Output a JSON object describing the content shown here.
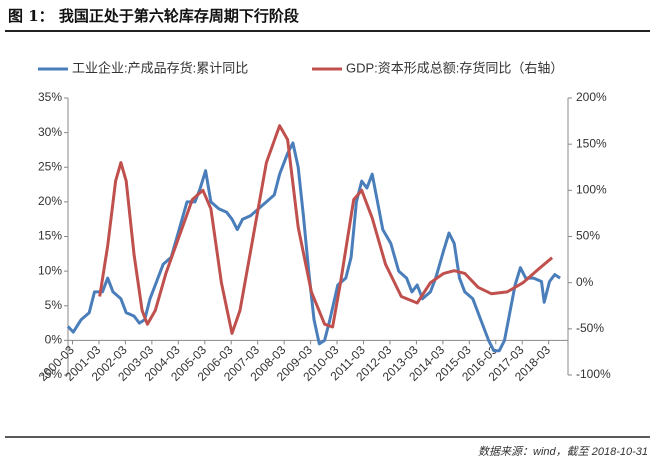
{
  "chart_data": {
    "type": "line",
    "title": "图 1：  我国正处于第六轮库存周期下行阶段",
    "source": "数据来源：wind，截至 2018-10-31",
    "xlim": [
      2000.0,
      2018.9
    ],
    "xticks": [
      {
        "value": 2000.17,
        "label": "2000-03"
      },
      {
        "value": 2001.17,
        "label": "2001-03"
      },
      {
        "value": 2002.17,
        "label": "2002-03"
      },
      {
        "value": 2003.17,
        "label": "2003-03"
      },
      {
        "value": 2004.17,
        "label": "2004-03"
      },
      {
        "value": 2005.17,
        "label": "2005-03"
      },
      {
        "value": 2006.17,
        "label": "2006-03"
      },
      {
        "value": 2007.17,
        "label": "2007-03"
      },
      {
        "value": 2008.17,
        "label": "2008-03"
      },
      {
        "value": 2009.17,
        "label": "2009-03"
      },
      {
        "value": 2010.17,
        "label": "2010-03"
      },
      {
        "value": 2011.17,
        "label": "2011-03"
      },
      {
        "value": 2012.17,
        "label": "2012-03"
      },
      {
        "value": 2013.17,
        "label": "2013-03"
      },
      {
        "value": 2014.17,
        "label": "2014-03"
      },
      {
        "value": 2015.17,
        "label": "2015-03"
      },
      {
        "value": 2016.17,
        "label": "2016-03"
      },
      {
        "value": 2017.17,
        "label": "2017-03"
      },
      {
        "value": 2018.17,
        "label": "2018-03"
      }
    ],
    "ylim": [
      -5,
      35
    ],
    "yticks": [
      {
        "value": -5,
        "label": "-5%"
      },
      {
        "value": 0,
        "label": "0%"
      },
      {
        "value": 5,
        "label": "5%"
      },
      {
        "value": 10,
        "label": "10%"
      },
      {
        "value": 15,
        "label": "15%"
      },
      {
        "value": 20,
        "label": "20%"
      },
      {
        "value": 25,
        "label": "25%"
      },
      {
        "value": 30,
        "label": "30%"
      },
      {
        "value": 35,
        "label": "35%"
      }
    ],
    "y2lim": [
      -100,
      200
    ],
    "y2ticks": [
      {
        "value": -100,
        "label": "-100%"
      },
      {
        "value": -50,
        "label": "-50%"
      },
      {
        "value": 0,
        "label": "0%"
      },
      {
        "value": 50,
        "label": "50%"
      },
      {
        "value": 100,
        "label": "100%"
      },
      {
        "value": 150,
        "label": "150%"
      },
      {
        "value": 200,
        "label": "200%"
      }
    ],
    "grid": false,
    "series": [
      {
        "name": "工业企业:产成品存货:累计同比",
        "color": "#4a7ebb",
        "axis": "y",
        "x": [
          2000.0,
          2000.2,
          2000.5,
          2000.8,
          2001.0,
          2001.3,
          2001.5,
          2001.7,
          2002.0,
          2002.2,
          2002.5,
          2002.7,
          2002.9,
          2003.1,
          2003.3,
          2003.6,
          2003.9,
          2004.2,
          2004.5,
          2004.8,
          2005.0,
          2005.2,
          2005.4,
          2005.7,
          2006.0,
          2006.2,
          2006.4,
          2006.6,
          2006.9,
          2007.2,
          2007.5,
          2007.8,
          2008.0,
          2008.3,
          2008.5,
          2008.7,
          2008.9,
          2009.1,
          2009.3,
          2009.5,
          2009.7,
          2009.9,
          2010.2,
          2010.5,
          2010.7,
          2010.9,
          2011.1,
          2011.3,
          2011.5,
          2011.7,
          2011.9,
          2012.2,
          2012.5,
          2012.8,
          2013.0,
          2013.2,
          2013.4,
          2013.7,
          2013.9,
          2014.2,
          2014.4,
          2014.6,
          2014.8,
          2015.0,
          2015.3,
          2015.6,
          2015.9,
          2016.1,
          2016.3,
          2016.5,
          2016.7,
          2016.9,
          2017.1,
          2017.3,
          2017.6,
          2017.9,
          2018.0,
          2018.2,
          2018.4,
          2018.6
        ],
        "values": [
          2,
          1.2,
          3,
          4,
          7,
          7,
          9,
          7,
          6,
          4,
          3.5,
          2.5,
          3,
          6,
          8,
          11,
          12,
          16,
          20,
          20,
          22,
          24.5,
          20,
          19,
          18.5,
          17.5,
          16,
          17.5,
          18,
          19,
          20,
          21,
          24,
          27,
          28.5,
          25,
          18,
          10,
          3,
          -0.5,
          0,
          3,
          8,
          9,
          12,
          20,
          23,
          22,
          24,
          20,
          16,
          14,
          10,
          9,
          7,
          8,
          6,
          7,
          9,
          13,
          15.5,
          14,
          9,
          7,
          6,
          3,
          0,
          -1.5,
          -1.5,
          0,
          4,
          8,
          10.5,
          9,
          9,
          8.5,
          5.5,
          8.5,
          9.5,
          9
        ]
      },
      {
        "name": "GDP:资本形成总额:存货同比（右轴）",
        "color": "#c0504d",
        "axis": "y2",
        "x": [
          2001.2,
          2001.5,
          2001.8,
          2002.0,
          2002.2,
          2002.5,
          2002.8,
          2003.0,
          2003.3,
          2003.7,
          2004.2,
          2004.7,
          2005.1,
          2005.4,
          2005.8,
          2006.2,
          2006.5,
          2007.0,
          2007.5,
          2008.0,
          2008.3,
          2008.7,
          2009.2,
          2009.7,
          2010.0,
          2010.3,
          2010.8,
          2011.1,
          2011.5,
          2012.0,
          2012.6,
          2013.2,
          2013.7,
          2014.2,
          2014.6,
          2015.0,
          2015.5,
          2016.0,
          2016.6,
          2017.2,
          2017.8,
          2018.3
        ],
        "values": [
          -15,
          40,
          110,
          130,
          110,
          30,
          -30,
          -45,
          -30,
          10,
          50,
          90,
          100,
          80,
          0,
          -55,
          -30,
          50,
          130,
          170,
          155,
          60,
          -10,
          -45,
          -48,
          0,
          90,
          100,
          70,
          20,
          -15,
          -22,
          0,
          10,
          13,
          10,
          -5,
          -12,
          -10,
          0,
          15,
          27
        ]
      }
    ]
  }
}
